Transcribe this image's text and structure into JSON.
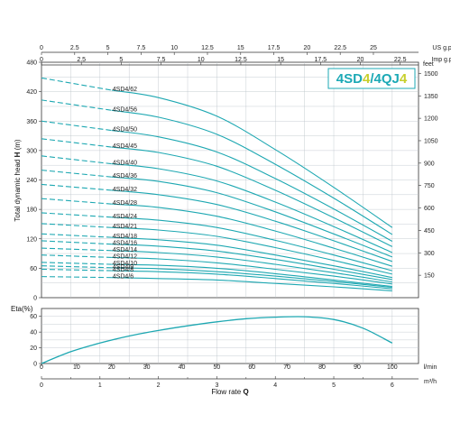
{
  "chart_data": [
    {
      "type": "line",
      "title": "",
      "brand": {
        "part1": "4SD",
        "num1": "4",
        "sep": "/",
        "part2": "4QJ",
        "num2": "4",
        "color_text": "#1ca9b6",
        "color_num": "#c7cf2c"
      },
      "xlabel": "Flow rate",
      "xlabel_symbol": "Q",
      "ylabel": "Total dynamic head",
      "ylabel_symbol": "H",
      "ylabel_unit": "(m)",
      "xlim": [
        0,
        6.45
      ],
      "ylim": [
        0,
        480
      ],
      "x_unit": "m³/h",
      "bottom_axis": {
        "unit": "m³/h",
        "ticks": [
          "0",
          "1",
          "2",
          "3",
          "4",
          "5",
          "6"
        ],
        "values": [
          0,
          1,
          2,
          3,
          4,
          5,
          6
        ]
      },
      "bottom_axis2": {
        "unit": "l/min",
        "ticks": [
          "0",
          "10",
          "20",
          "30",
          "40",
          "50",
          "60",
          "70",
          "80",
          "90",
          "100"
        ],
        "values": [
          0,
          10,
          20,
          30,
          40,
          50,
          60,
          70,
          80,
          90,
          100
        ]
      },
      "top_axis_us": {
        "unit": "US g.p.m",
        "ticks": [
          "0",
          "2.5",
          "5",
          "7.5",
          "10",
          "12.5",
          "15",
          "17.5",
          "20",
          "22.5",
          "25"
        ],
        "values": [
          0,
          2.5,
          5,
          7.5,
          10,
          12.5,
          15,
          17.5,
          20,
          22.5,
          25
        ]
      },
      "top_axis_imp": {
        "unit": "Imp g.p.m",
        "ticks": [
          "0",
          "2.5",
          "5",
          "7.5",
          "10",
          "12.5",
          "15",
          "17.5",
          "20",
          "22.5"
        ],
        "values": [
          0,
          2.5,
          5,
          7.5,
          10,
          12.5,
          15,
          17.5,
          20,
          22.5
        ]
      },
      "left_axis": {
        "unit": "m",
        "ticks": [
          "0",
          "60",
          "120",
          "180",
          "240",
          "300",
          "360",
          "420",
          "480"
        ],
        "values": [
          0,
          60,
          120,
          180,
          240,
          300,
          360,
          420,
          480
        ]
      },
      "right_axis": {
        "unit": "feet",
        "ticks": [
          "0",
          "150",
          "300",
          "450",
          "600",
          "750",
          "900",
          "1050",
          "1200",
          "1350",
          "1500"
        ],
        "values": [
          0,
          150,
          300,
          450,
          600,
          750,
          900,
          1050,
          1200,
          1350,
          1500
        ]
      },
      "grid": true,
      "dashed_until_q": 1.2,
      "q": [
        0,
        1.2,
        2,
        3,
        4,
        5,
        6
      ],
      "series": [
        {
          "name": "4SD4/62",
          "values": [
            448,
            423,
            408,
            370,
            302,
            225,
            143
          ]
        },
        {
          "name": "4SD4/56",
          "values": [
            403,
            382,
            368,
            333,
            272,
            203,
            129
          ]
        },
        {
          "name": "4SD4/50",
          "values": [
            360,
            341,
            328,
            297,
            243,
            181,
            115
          ]
        },
        {
          "name": "4SD4/45",
          "values": [
            324,
            307,
            296,
            268,
            219,
            163,
            104
          ]
        },
        {
          "name": "4SD4/40",
          "values": [
            289,
            273,
            263,
            238,
            195,
            145,
            92
          ]
        },
        {
          "name": "4SD4/36",
          "values": [
            260,
            246,
            237,
            214,
            175,
            130,
            83
          ]
        },
        {
          "name": "4SD4/32",
          "values": [
            231,
            219,
            210,
            190,
            156,
            116,
            74
          ]
        },
        {
          "name": "4SD4/28",
          "values": [
            202,
            191,
            184,
            166,
            136,
            101,
            64
          ]
        },
        {
          "name": "4SD4/24",
          "values": [
            173,
            164,
            158,
            143,
            117,
            87,
            55
          ]
        },
        {
          "name": "4SD4/21",
          "values": [
            151,
            143,
            138,
            125,
            102,
            76,
            48
          ]
        },
        {
          "name": "4SD4/18",
          "values": [
            130,
            123,
            118,
            107,
            87,
            65,
            41
          ]
        },
        {
          "name": "4SD4/16",
          "values": [
            116,
            109,
            105,
            95,
            78,
            58,
            37
          ]
        },
        {
          "name": "4SD4/14",
          "values": [
            101,
            96,
            92,
            83,
            68,
            51,
            32
          ]
        },
        {
          "name": "4SD4/12",
          "values": [
            87,
            82,
            79,
            71,
            58,
            44,
            28
          ]
        },
        {
          "name": "4SD4/10",
          "values": [
            72,
            68,
            66,
            60,
            49,
            36,
            23
          ]
        },
        {
          "name": "4SD4/9",
          "values": [
            65,
            61,
            59,
            53,
            44,
            33,
            21
          ]
        },
        {
          "name": "4SD4/8",
          "values": [
            58,
            55,
            53,
            48,
            39,
            29,
            18
          ]
        },
        {
          "name": "4SD4/6",
          "values": [
            43,
            41,
            39,
            36,
            29,
            22,
            14
          ]
        }
      ],
      "line_color": "#1ea8b2",
      "grid_color": "#b9c0c8"
    },
    {
      "type": "line",
      "ylabel": "Eta",
      "ylabel_unit": "(%)",
      "left_axis": {
        "ticks": [
          "0",
          "20",
          "40",
          "60"
        ],
        "values": [
          0,
          20,
          40,
          60
        ]
      },
      "xlim": [
        0,
        6.45
      ],
      "ylim": [
        0,
        70
      ],
      "grid": true,
      "series": [
        {
          "name": "",
          "x": [
            0,
            0.5,
            1,
            1.5,
            2,
            2.5,
            3,
            3.5,
            4,
            4.5,
            5,
            5.5,
            6
          ],
          "values": [
            0,
            15,
            26,
            35,
            42,
            48,
            53,
            57,
            59,
            59.5,
            56,
            45,
            26
          ]
        }
      ],
      "line_color": "#1ea8b2"
    }
  ]
}
